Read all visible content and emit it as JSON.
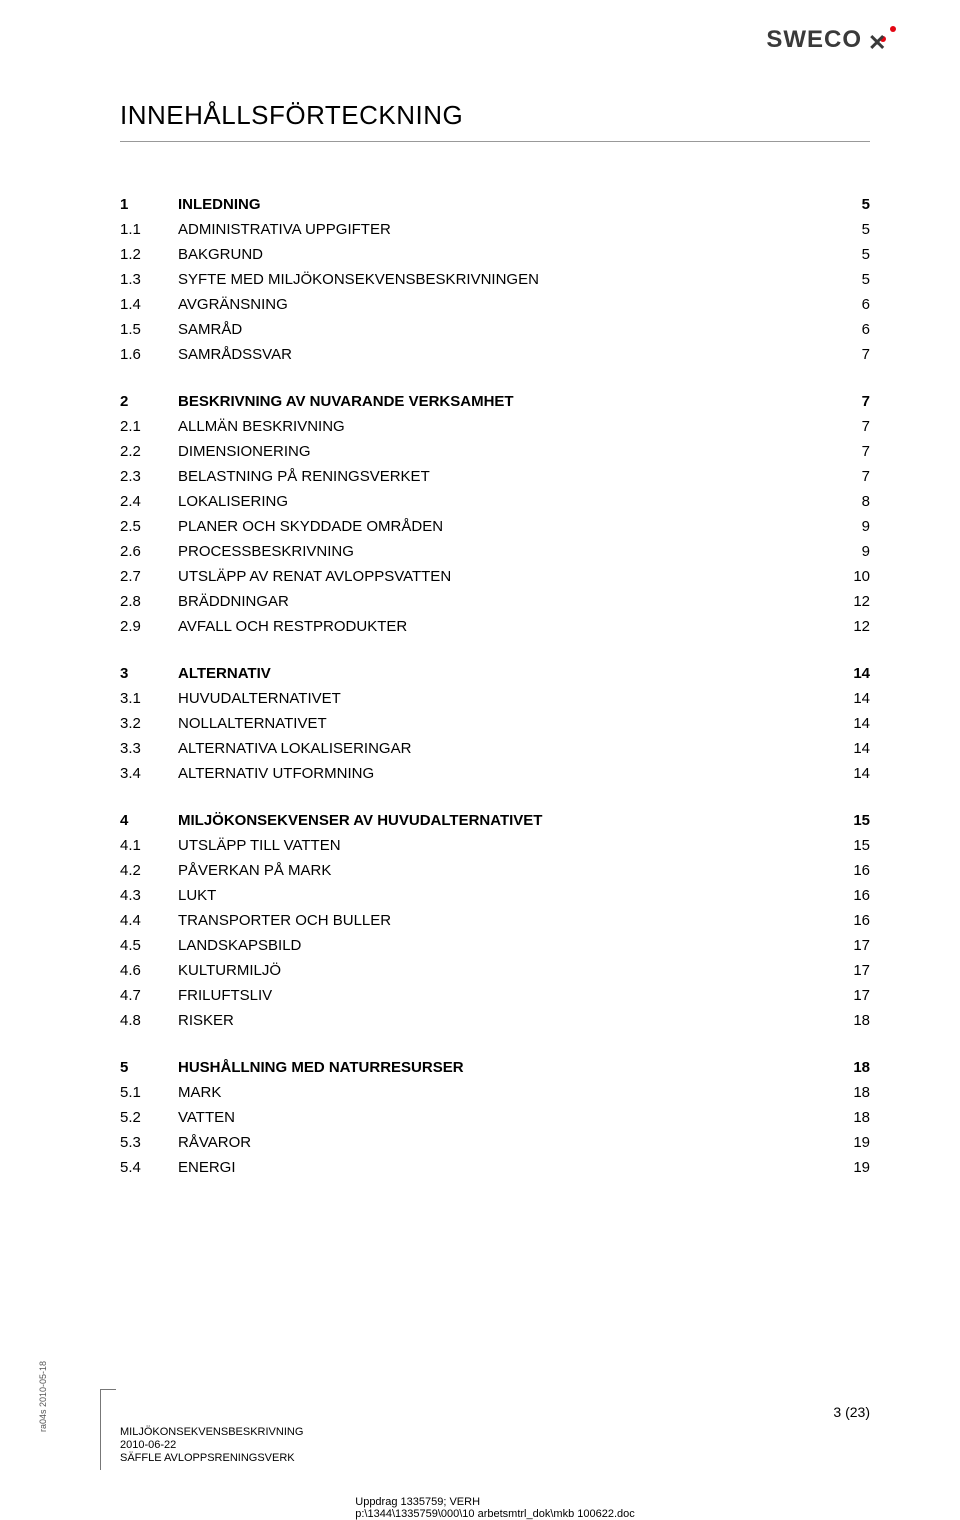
{
  "logo": {
    "text": "SWECO"
  },
  "title": "INNEHÅLLSFÖRTECKNING",
  "toc": [
    {
      "entries": [
        {
          "num": "1",
          "label": "INLEDNING",
          "page": "5",
          "level": 1
        },
        {
          "num": "1.1",
          "label": "ADMINISTRATIVA UPPGIFTER",
          "page": "5",
          "level": 2
        },
        {
          "num": "1.2",
          "label": "BAKGRUND",
          "page": "5",
          "level": 2
        },
        {
          "num": "1.3",
          "label": "SYFTE MED MILJÖKONSEKVENSBESKRIVNINGEN",
          "page": "5",
          "level": 2
        },
        {
          "num": "1.4",
          "label": "AVGRÄNSNING",
          "page": "6",
          "level": 2
        },
        {
          "num": "1.5",
          "label": "SAMRÅD",
          "page": "6",
          "level": 2
        },
        {
          "num": "1.6",
          "label": "SAMRÅDSSVAR",
          "page": "7",
          "level": 2
        }
      ]
    },
    {
      "entries": [
        {
          "num": "2",
          "label": "BESKRIVNING AV NUVARANDE VERKSAMHET",
          "page": "7",
          "level": 1
        },
        {
          "num": "2.1",
          "label": "ALLMÄN BESKRIVNING",
          "page": "7",
          "level": 2
        },
        {
          "num": "2.2",
          "label": "DIMENSIONERING",
          "page": "7",
          "level": 2
        },
        {
          "num": "2.3",
          "label": "BELASTNING PÅ RENINGSVERKET",
          "page": "7",
          "level": 2
        },
        {
          "num": "2.4",
          "label": "LOKALISERING",
          "page": "8",
          "level": 2
        },
        {
          "num": "2.5",
          "label": "PLANER OCH SKYDDADE OMRÅDEN",
          "page": "9",
          "level": 2
        },
        {
          "num": "2.6",
          "label": "PROCESSBESKRIVNING",
          "page": "9",
          "level": 2
        },
        {
          "num": "2.7",
          "label": "UTSLÄPP AV RENAT AVLOPPSVATTEN",
          "page": "10",
          "level": 2
        },
        {
          "num": "2.8",
          "label": "BRÄDDNINGAR",
          "page": "12",
          "level": 2
        },
        {
          "num": "2.9",
          "label": "AVFALL OCH RESTPRODUKTER",
          "page": "12",
          "level": 2
        }
      ]
    },
    {
      "entries": [
        {
          "num": "3",
          "label": "ALTERNATIV",
          "page": "14",
          "level": 1
        },
        {
          "num": "3.1",
          "label": "HUVUDALTERNATIVET",
          "page": "14",
          "level": 2
        },
        {
          "num": "3.2",
          "label": "NOLLALTERNATIVET",
          "page": "14",
          "level": 2
        },
        {
          "num": "3.3",
          "label": "ALTERNATIVA LOKALISERINGAR",
          "page": "14",
          "level": 2
        },
        {
          "num": "3.4",
          "label": "ALTERNATIV UTFORMNING",
          "page": "14",
          "level": 2
        }
      ]
    },
    {
      "entries": [
        {
          "num": "4",
          "label": "MILJÖKONSEKVENSER AV HUVUDALTERNATIVET",
          "page": "15",
          "level": 1
        },
        {
          "num": "4.1",
          "label": "UTSLÄPP TILL VATTEN",
          "page": "15",
          "level": 2
        },
        {
          "num": "4.2",
          "label": "PÅVERKAN PÅ MARK",
          "page": "16",
          "level": 2
        },
        {
          "num": "4.3",
          "label": "LUKT",
          "page": "16",
          "level": 2
        },
        {
          "num": "4.4",
          "label": "TRANSPORTER OCH BULLER",
          "page": "16",
          "level": 2
        },
        {
          "num": "4.5",
          "label": "LANDSKAPSBILD",
          "page": "17",
          "level": 2
        },
        {
          "num": "4.6",
          "label": "KULTURMILJÖ",
          "page": "17",
          "level": 2
        },
        {
          "num": "4.7",
          "label": "FRILUFTSLIV",
          "page": "17",
          "level": 2
        },
        {
          "num": "4.8",
          "label": "RISKER",
          "page": "18",
          "level": 2
        }
      ]
    },
    {
      "entries": [
        {
          "num": "5",
          "label": "HUSHÅLLNING MED NATURRESURSER",
          "page": "18",
          "level": 1
        },
        {
          "num": "5.1",
          "label": "MARK",
          "page": "18",
          "level": 2
        },
        {
          "num": "5.2",
          "label": "VATTEN",
          "page": "18",
          "level": 2
        },
        {
          "num": "5.3",
          "label": "RÅVAROR",
          "page": "19",
          "level": 2
        },
        {
          "num": "5.4",
          "label": "ENERGI",
          "page": "19",
          "level": 2
        }
      ]
    }
  ],
  "footer": {
    "line1": "MILJÖKONSEKVENSBESKRIVNING",
    "line2": "2010-06-22",
    "line3": "SÄFFLE AVLOPPSRENINGSVERK",
    "pagenum": "3 (23)",
    "center1": "Uppdrag 1335759; VERH",
    "center2": "p:\\1344\\1335759\\000\\10 arbetsmtrl_dok\\mkb 100622.doc"
  },
  "side": "ra04s 2010-05-18"
}
